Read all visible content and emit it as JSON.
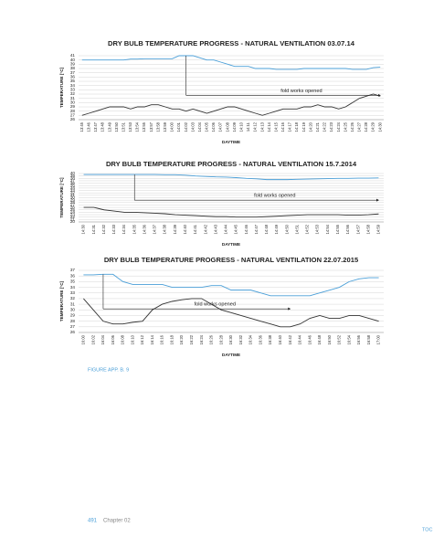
{
  "chart_data": [
    {
      "type": "line",
      "title": "DRY BULB TEMPERATURE PROGRESS  - NATURAL VENTILATION 03.07.14",
      "y_label": "TEMPERATURE [°C]",
      "x_label": "DAYTIME",
      "annotation": "fold works opened",
      "categories": [
        "13:45",
        "13:46",
        "13:47",
        "13:48",
        "13:49",
        "13:50",
        "13:51",
        "13:53",
        "13:54",
        "13:55",
        "13:57",
        "13:58",
        "13:59",
        "14:00",
        "14:01",
        "14:02",
        "14:03",
        "14:04",
        "14:05",
        "14:06",
        "14:07",
        "14:08",
        "14:09",
        "14:10",
        "14:11",
        "14:12",
        "14:13",
        "14:14",
        "14:15",
        "14:16",
        "14:17",
        "14:18",
        "14:19",
        "14:20",
        "14:21",
        "14:22",
        "14:23",
        "14:24",
        "14:25",
        "14:26",
        "14:27",
        "14:28",
        "14:29",
        "14:30"
      ],
      "series": [
        {
          "color": "#4a9fd8",
          "values": [
            40,
            40,
            40,
            40,
            40,
            40,
            40,
            40.2,
            40.2,
            40.3,
            40.3,
            40.3,
            40.3,
            40.3,
            41,
            41,
            41,
            40.5,
            40,
            40,
            39.5,
            39,
            38.5,
            38.5,
            38.5,
            38,
            38,
            38,
            37.8,
            37.8,
            37.8,
            37.8,
            38,
            38,
            38,
            38,
            38,
            38,
            38,
            37.8,
            37.8,
            37.8,
            38.2,
            38.3
          ]
        },
        {
          "color": "#333333",
          "values": [
            27,
            27.5,
            28,
            28.5,
            29,
            29,
            29,
            28.5,
            29,
            29,
            29.5,
            29.5,
            29,
            28.5,
            28.5,
            28,
            28.5,
            28,
            27.5,
            28,
            28.5,
            29,
            29,
            28.5,
            28,
            27.5,
            27,
            27.5,
            28,
            28.5,
            28.5,
            28.5,
            29,
            29,
            29.5,
            29,
            29,
            28.5,
            29,
            30,
            31,
            31.5,
            32,
            31.5
          ]
        }
      ],
      "ylim": [
        26,
        41
      ],
      "yticks": [
        26,
        27,
        28,
        29,
        30,
        31,
        32,
        33,
        34,
        35,
        36,
        37,
        38,
        39,
        40,
        41
      ],
      "grid": true
    },
    {
      "type": "line",
      "title": "DRY BULB TEMPERATURE PROGRESS  - NATURAL VENTILATION 15.7.2014",
      "y_label": "TEMPERATURE [°C]",
      "x_label": "DAYTIME",
      "annotation": "fold works opened",
      "categories": [
        "14:30",
        "14:31",
        "14:32",
        "14:33",
        "14:34",
        "14:35",
        "14:36",
        "14:37",
        "14:38",
        "14:39",
        "14:40",
        "14:41",
        "14:42",
        "14:43",
        "14:44",
        "14:45",
        "14:46",
        "14:47",
        "14:48",
        "14:49",
        "14:50",
        "14:51",
        "14:52",
        "14:53",
        "14:54",
        "14:55",
        "14:56",
        "14:57",
        "14:58",
        "14:59"
      ],
      "series": [
        {
          "color": "#4a9fd8",
          "values": [
            39.6,
            39.6,
            39.6,
            39.6,
            39.6,
            39.6,
            39.6,
            39.6,
            39.5,
            39.5,
            39.3,
            39,
            38.8,
            38.6,
            38.5,
            38.3,
            38,
            37.8,
            37.5,
            37.5,
            37.5,
            37.6,
            37.7,
            37.8,
            37.9,
            38,
            38,
            38.1,
            38.1,
            38.2
          ]
        },
        {
          "color": "#333333",
          "values": [
            26,
            26,
            25,
            24.5,
            24,
            24,
            23.8,
            23.6,
            23.4,
            23,
            22.8,
            22.6,
            22.4,
            22.2,
            22.2,
            22,
            22,
            22,
            22.2,
            22.4,
            22.6,
            22.8,
            23,
            23,
            23,
            23,
            22.8,
            22.8,
            23,
            23.3
          ]
        }
      ],
      "ylim": [
        20,
        40
      ],
      "yticks": [
        20,
        21,
        22,
        23,
        24,
        25,
        26,
        27,
        28,
        29,
        30,
        31,
        32,
        33,
        34,
        35,
        36,
        37,
        38,
        39,
        40
      ],
      "grid": true
    },
    {
      "type": "line",
      "title": "DRY BULB TEMPERATURE PROGRESS  - NATURAL VENTILATION 22.07.2015",
      "y_label": "TEMPERATURE [°C]",
      "x_label": "DAYTIME",
      "annotation": "fold works opened",
      "categories": [
        "16:00",
        "16:02",
        "16:04",
        "16:06",
        "16:08",
        "16:10",
        "16:12",
        "16:14",
        "16:16",
        "16:18",
        "16:20",
        "16:22",
        "16:24",
        "16:26",
        "16:28",
        "16:30",
        "16:32",
        "16:34",
        "16:36",
        "16:38",
        "16:40",
        "16:42",
        "16:44",
        "16:46",
        "16:48",
        "16:50",
        "16:52",
        "16:54",
        "16:56",
        "16:58",
        "17:00"
      ],
      "series": [
        {
          "color": "#4a9fd8",
          "values": [
            36.2,
            36.2,
            36.3,
            36.3,
            35,
            34.5,
            34.5,
            34.5,
            34.5,
            34,
            34,
            34,
            34,
            34.3,
            34.3,
            33.5,
            33.5,
            33.5,
            33,
            32.5,
            32.5,
            32.5,
            32.5,
            32.5,
            33,
            33.5,
            34,
            35,
            35.5,
            35.7,
            35.7
          ]
        },
        {
          "color": "#333333",
          "values": [
            32,
            30,
            28,
            27.5,
            27.5,
            27.8,
            28,
            30,
            31,
            31.5,
            31.8,
            32,
            32,
            31,
            30,
            29.5,
            29,
            28.5,
            28,
            27.5,
            27,
            27,
            27.5,
            28.5,
            29,
            28.5,
            28.5,
            29,
            29,
            28.5,
            28
          ]
        }
      ],
      "ylim": [
        26,
        37
      ],
      "yticks": [
        26,
        27,
        28,
        29,
        30,
        31,
        32,
        33,
        34,
        35,
        36,
        37
      ],
      "grid": true
    }
  ],
  "caption": "FIGURE APP. B. 9",
  "footer": {
    "page": "491",
    "chapter": "Chapter 02",
    "toc": "TOC"
  }
}
